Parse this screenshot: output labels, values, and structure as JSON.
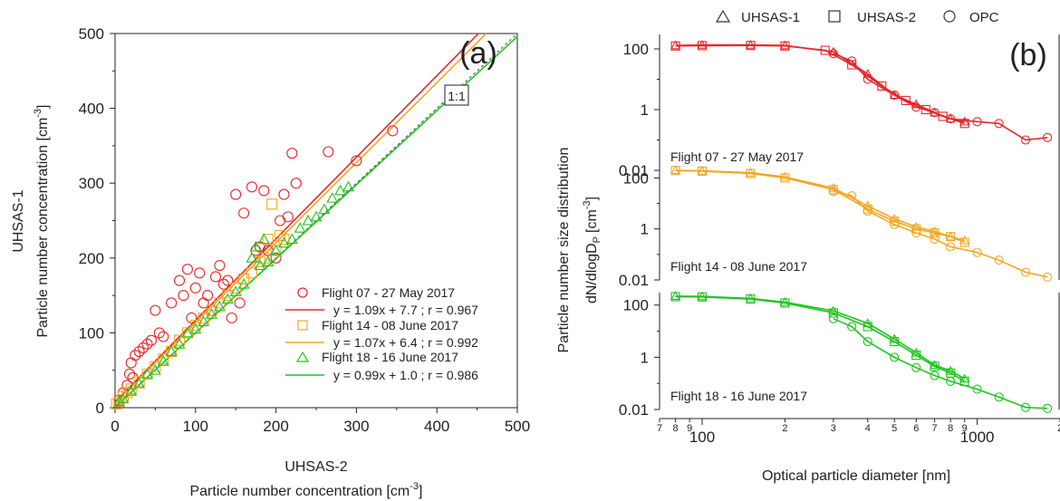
{
  "legend_top": {
    "items": [
      {
        "marker": "triangle",
        "label": "UHSAS-1"
      },
      {
        "marker": "square",
        "label": "UHSAS-2"
      },
      {
        "marker": "circle",
        "label": "OPC"
      }
    ]
  },
  "colors": {
    "flight07": "#e8262a",
    "flight14": "#f5a623",
    "flight18": "#1ec41e",
    "axis": "#222222",
    "oneone": "#444444"
  },
  "chart_data": [
    {
      "type": "scatter",
      "panel_tag": "(a)",
      "xlabel_top": "UHSAS-2",
      "xlabel_bottom": "Particle number concentration [cm",
      "xlabel_bottom_sup": "-3",
      "xlabel_bottom_end": "]",
      "ylabel_outer": "UHSAS-1",
      "ylabel_inner": "Particle number concentration [cm",
      "ylabel_inner_sup": "-3",
      "ylabel_inner_end": "]",
      "xlim": [
        0,
        500
      ],
      "ylim": [
        0,
        500
      ],
      "xticks": [
        "0",
        "100",
        "200",
        "300",
        "400",
        "500"
      ],
      "yticks": [
        "0",
        "100",
        "200",
        "300",
        "400",
        "500"
      ],
      "one_to_one_label": "1:1",
      "series": [
        {
          "name": "Flight 07 - 27 May 2017",
          "marker": "circle",
          "fit_label": "y = 1.09x + 7.7 ; r = 0.967",
          "fit": {
            "slope": 1.09,
            "intercept": 7.7
          },
          "points": [
            [
              5,
              10
            ],
            [
              10,
              20
            ],
            [
              15,
              30
            ],
            [
              18,
              45
            ],
            [
              20,
              60
            ],
            [
              22,
              40
            ],
            [
              25,
              70
            ],
            [
              30,
              75
            ],
            [
              35,
              80
            ],
            [
              40,
              85
            ],
            [
              45,
              90
            ],
            [
              50,
              130
            ],
            [
              55,
              100
            ],
            [
              60,
              95
            ],
            [
              70,
              140
            ],
            [
              80,
              170
            ],
            [
              85,
              150
            ],
            [
              90,
              185
            ],
            [
              95,
              120
            ],
            [
              100,
              160
            ],
            [
              105,
              180
            ],
            [
              110,
              140
            ],
            [
              115,
              150
            ],
            [
              120,
              130
            ],
            [
              125,
              175
            ],
            [
              130,
              190
            ],
            [
              135,
              165
            ],
            [
              140,
              170
            ],
            [
              145,
              120
            ],
            [
              150,
              285
            ],
            [
              155,
              140
            ],
            [
              160,
              260
            ],
            [
              170,
              295
            ],
            [
              175,
              210
            ],
            [
              180,
              215
            ],
            [
              185,
              290
            ],
            [
              190,
              210
            ],
            [
              200,
              200
            ],
            [
              205,
              250
            ],
            [
              210,
              285
            ],
            [
              215,
              255
            ],
            [
              220,
              340
            ],
            [
              225,
              300
            ],
            [
              265,
              342
            ],
            [
              300,
              330
            ],
            [
              345,
              370
            ]
          ]
        },
        {
          "name": "Flight 14 - 08 June 2017",
          "marker": "square",
          "fit_label": "y = 1.07x + 6.4 ; r = 0.992",
          "fit": {
            "slope": 1.07,
            "intercept": 6.4
          },
          "points": [
            [
              2,
              5
            ],
            [
              5,
              8
            ],
            [
              10,
              15
            ],
            [
              15,
              20
            ],
            [
              20,
              25
            ],
            [
              30,
              35
            ],
            [
              40,
              45
            ],
            [
              50,
              55
            ],
            [
              60,
              65
            ],
            [
              70,
              75
            ],
            [
              80,
              90
            ],
            [
              90,
              100
            ],
            [
              100,
              110
            ],
            [
              110,
              120
            ],
            [
              120,
              130
            ],
            [
              130,
              140
            ],
            [
              140,
              150
            ],
            [
              150,
              160
            ],
            [
              160,
              172
            ],
            [
              170,
              180
            ],
            [
              180,
              195
            ],
            [
              185,
              200
            ],
            [
              190,
              225
            ],
            [
              195,
              272
            ],
            [
              200,
              210
            ],
            [
              205,
              230
            ],
            [
              210,
              225
            ]
          ]
        },
        {
          "name": "Flight 18 - 16 June 2017",
          "marker": "triangle",
          "fit_label": "y = 0.99x + 1.0 ; r = 0.986",
          "fit": {
            "slope": 0.99,
            "intercept": 1.0
          },
          "points": [
            [
              5,
              8
            ],
            [
              10,
              12
            ],
            [
              20,
              22
            ],
            [
              30,
              32
            ],
            [
              40,
              45
            ],
            [
              50,
              50
            ],
            [
              60,
              62
            ],
            [
              70,
              75
            ],
            [
              80,
              85
            ],
            [
              90,
              100
            ],
            [
              100,
              105
            ],
            [
              110,
              115
            ],
            [
              120,
              125
            ],
            [
              130,
              135
            ],
            [
              140,
              145
            ],
            [
              150,
              155
            ],
            [
              160,
              165
            ],
            [
              170,
              200
            ],
            [
              175,
              215
            ],
            [
              180,
              190
            ],
            [
              185,
              225
            ],
            [
              190,
              195
            ],
            [
              200,
              210
            ],
            [
              210,
              220
            ],
            [
              220,
              225
            ],
            [
              230,
              240
            ],
            [
              240,
              250
            ],
            [
              250,
              255
            ],
            [
              260,
              265
            ],
            [
              270,
              280
            ],
            [
              280,
              290
            ],
            [
              290,
              295
            ]
          ]
        }
      ]
    },
    {
      "type": "line",
      "panel_tag": "(b)",
      "xlabel": "Optical particle diameter [nm]",
      "ylabel_main": "Particle number size distribution",
      "ylabel_sub": "dN/dlogD",
      "ylabel_sub_subscript": "P",
      "ylabel_unit": "[cm",
      "ylabel_unit_sup": "-3",
      "ylabel_unit_end": "]",
      "x_scale": "log",
      "y_scale": "log",
      "xlim": [
        70,
        2000
      ],
      "ylim": [
        0.01,
        300
      ],
      "x_major_labels": [
        "100",
        "1000"
      ],
      "x_minor_labels": [
        "7",
        "8",
        "9",
        "2",
        "3",
        "4",
        "5",
        "6",
        "7",
        "8",
        "9",
        "2"
      ],
      "y_tick_labels": [
        "0.01",
        "1",
        "100"
      ],
      "panels": [
        {
          "label": "Flight 07 - 27 May 2017",
          "uhsas1": [
            [
              80,
              130
            ],
            [
              100,
              135
            ],
            [
              150,
              135
            ],
            [
              200,
              130
            ],
            [
              300,
              80
            ],
            [
              400,
              15
            ],
            [
              500,
              3
            ],
            [
              600,
              1.5
            ],
            [
              700,
              0.8
            ],
            [
              800,
              0.5
            ],
            [
              900,
              0.4
            ]
          ],
          "uhsas2": [
            [
              80,
              125
            ],
            [
              100,
              128
            ],
            [
              150,
              130
            ],
            [
              200,
              125
            ],
            [
              280,
              90
            ],
            [
              350,
              30
            ],
            [
              450,
              6
            ],
            [
              550,
              2
            ],
            [
              650,
              1
            ],
            [
              750,
              0.6
            ],
            [
              900,
              0.35
            ]
          ],
          "opc": [
            [
              300,
              70
            ],
            [
              350,
              40
            ],
            [
              400,
              10
            ],
            [
              500,
              3
            ],
            [
              600,
              1.2
            ],
            [
              700,
              0.8
            ],
            [
              800,
              0.5
            ],
            [
              1000,
              0.4
            ],
            [
              1200,
              0.35
            ],
            [
              1500,
              0.1
            ],
            [
              1800,
              0.12
            ]
          ]
        },
        {
          "label": "Flight 14 - 08 June 2017",
          "uhsas1": [
            [
              80,
              200
            ],
            [
              100,
              190
            ],
            [
              150,
              160
            ],
            [
              200,
              110
            ],
            [
              300,
              40
            ],
            [
              400,
              8
            ],
            [
              500,
              2.5
            ],
            [
              600,
              1.2
            ],
            [
              700,
              0.8
            ],
            [
              800,
              0.5
            ],
            [
              900,
              0.35
            ]
          ],
          "uhsas2": [
            [
              80,
              195
            ],
            [
              100,
              185
            ],
            [
              150,
              150
            ],
            [
              200,
              100
            ],
            [
              300,
              35
            ],
            [
              400,
              6
            ],
            [
              500,
              2
            ],
            [
              600,
              1
            ],
            [
              700,
              0.7
            ],
            [
              800,
              0.5
            ],
            [
              900,
              0.3
            ]
          ],
          "opc": [
            [
              300,
              30
            ],
            [
              350,
              20
            ],
            [
              400,
              5
            ],
            [
              500,
              1.5
            ],
            [
              600,
              0.7
            ],
            [
              700,
              0.4
            ],
            [
              800,
              0.2
            ],
            [
              1000,
              0.12
            ],
            [
              1200,
              0.06
            ],
            [
              1500,
              0.02
            ],
            [
              1800,
              0.013
            ]
          ]
        },
        {
          "label": "Flight 18 - 16 June 2017",
          "uhsas1": [
            [
              80,
              220
            ],
            [
              100,
              215
            ],
            [
              150,
              180
            ],
            [
              200,
              130
            ],
            [
              300,
              60
            ],
            [
              400,
              20
            ],
            [
              500,
              5
            ],
            [
              600,
              1.5
            ],
            [
              700,
              0.5
            ],
            [
              800,
              0.3
            ],
            [
              900,
              0.15
            ]
          ],
          "uhsas2": [
            [
              80,
              210
            ],
            [
              100,
              205
            ],
            [
              150,
              170
            ],
            [
              200,
              120
            ],
            [
              300,
              50
            ],
            [
              400,
              15
            ],
            [
              500,
              4
            ],
            [
              600,
              1.2
            ],
            [
              700,
              0.45
            ],
            [
              800,
              0.25
            ],
            [
              900,
              0.12
            ]
          ],
          "opc": [
            [
              300,
              30
            ],
            [
              350,
              15
            ],
            [
              400,
              4
            ],
            [
              500,
              1
            ],
            [
              600,
              0.4
            ],
            [
              700,
              0.2
            ],
            [
              800,
              0.12
            ],
            [
              1000,
              0.06
            ],
            [
              1200,
              0.03
            ],
            [
              1500,
              0.012
            ],
            [
              1800,
              0.011
            ]
          ]
        }
      ]
    }
  ]
}
